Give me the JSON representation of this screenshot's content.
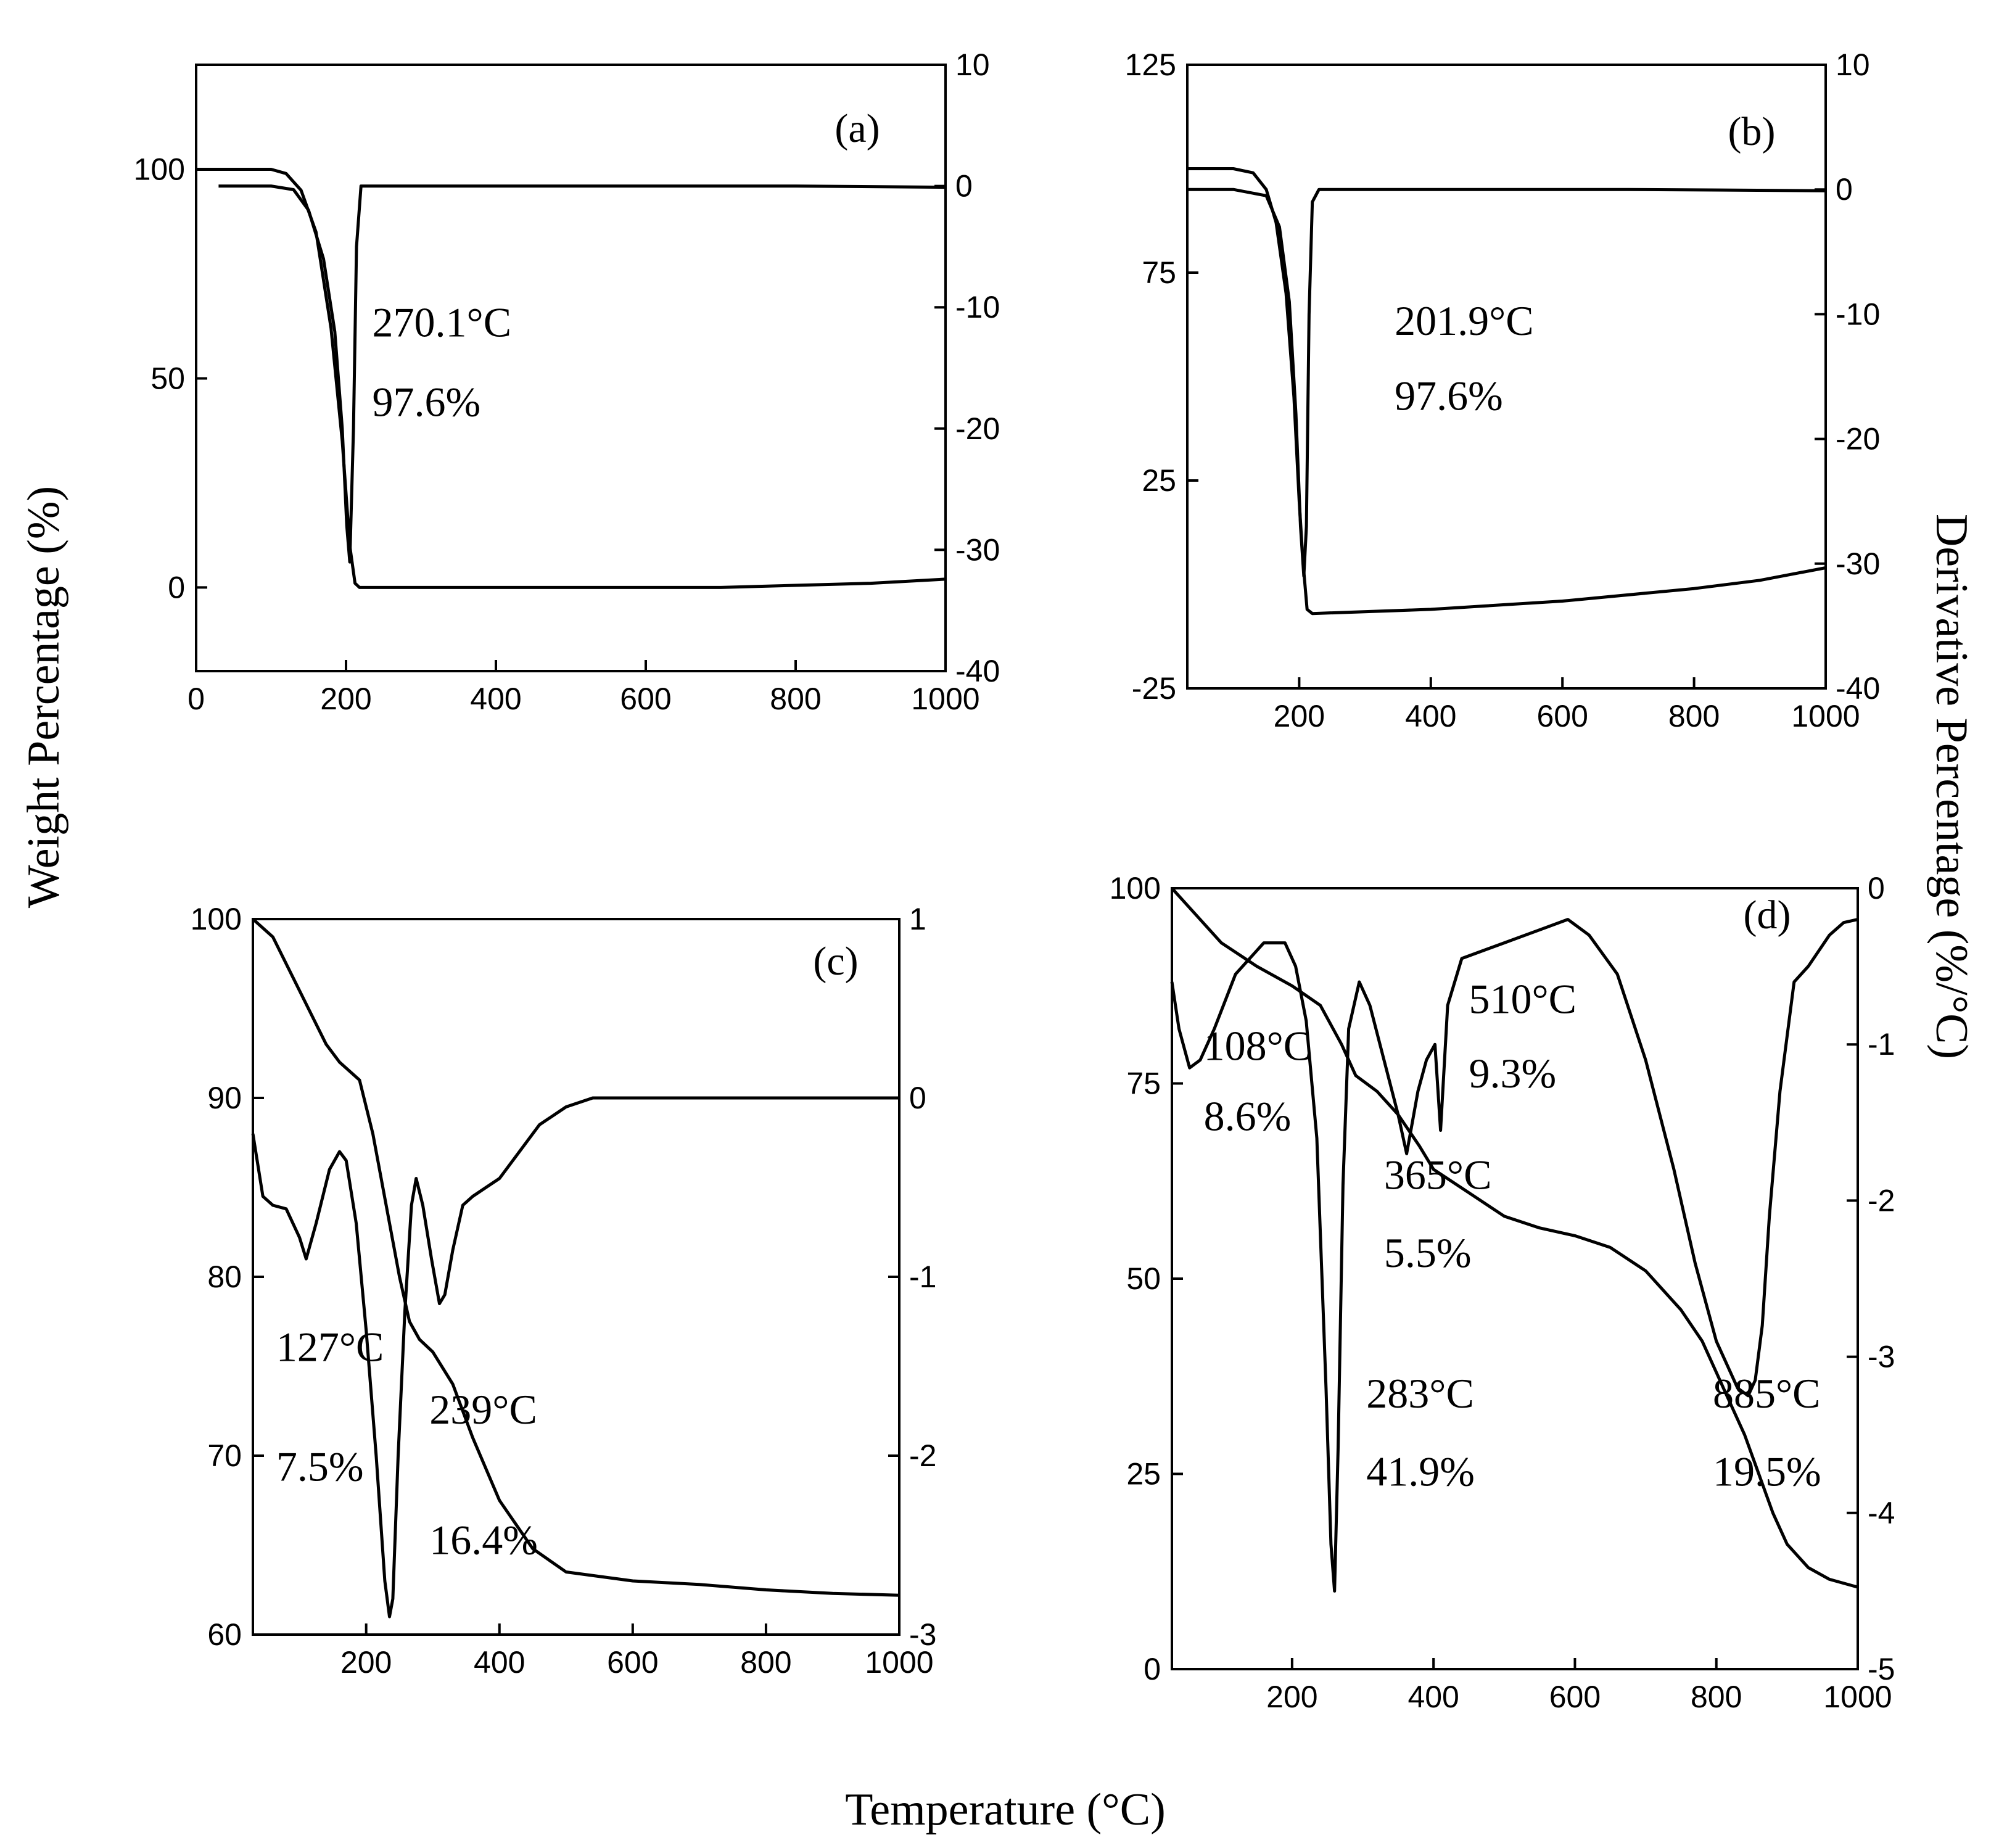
{
  "figure": {
    "ylabel_left": "Weight Percentage (%)",
    "ylabel_right": "Derivative Percentage (%/°C)",
    "xlabel": "Temperature (°C)"
  },
  "chart_data": [
    {
      "panel": "(a)",
      "type": "line",
      "xlim": [
        0,
        1000
      ],
      "ylim_left": [
        -20,
        125
      ],
      "ylim_right": [
        -40,
        10
      ],
      "xticks": [
        "0",
        "200",
        "400",
        "600",
        "800",
        "1000"
      ],
      "yticks_left": [
        "0",
        "50",
        "100"
      ],
      "yticks_right": [
        "10",
        "0",
        "-10",
        "-20",
        "-30",
        "-40"
      ],
      "annotations": [
        {
          "text": "270.1°C",
          "x": 235,
          "y": 60
        },
        {
          "text": "97.6%",
          "x": 235,
          "y": 41
        }
      ],
      "series": [
        {
          "name": "weight",
          "axis": "left",
          "x": [
            0,
            60,
            100,
            120,
            140,
            160,
            180,
            195,
            205,
            212,
            218,
            300,
            500,
            700,
            900,
            1000
          ],
          "y": [
            100,
            100,
            100,
            99,
            95,
            85,
            62,
            35,
            10,
            1,
            0,
            0,
            0,
            0,
            1,
            2
          ]
        },
        {
          "name": "derivative",
          "axis": "right",
          "x": [
            30,
            100,
            130,
            150,
            170,
            185,
            195,
            201,
            205,
            210,
            214,
            220,
            400,
            600,
            800,
            1000
          ],
          "y": [
            0,
            0,
            -0.3,
            -2,
            -6,
            -12,
            -20,
            -28,
            -31,
            -20,
            -5,
            0,
            0,
            0,
            0,
            -0.1
          ]
        }
      ]
    },
    {
      "panel": "(b)",
      "type": "line",
      "xlim": [
        30,
        1000
      ],
      "ylim_left": [
        -25,
        125
      ],
      "ylim_right": [
        -40,
        10
      ],
      "xticks": [
        "200",
        "400",
        "600",
        "800",
        "1000"
      ],
      "yticks_left": [
        "125",
        "75",
        "25",
        "-25"
      ],
      "yticks_right": [
        "10",
        "0",
        "-10",
        "-20",
        "-30",
        "-40"
      ],
      "annotations": [
        {
          "text": "201.9°C",
          "x": 345,
          "y": 60
        },
        {
          "text": "97.6%",
          "x": 345,
          "y": 42
        }
      ],
      "series": [
        {
          "name": "weight",
          "axis": "left",
          "x": [
            30,
            100,
            130,
            150,
            165,
            180,
            192,
            200,
            206,
            212,
            220,
            400,
            600,
            800,
            900,
            1000
          ],
          "y": [
            100,
            100,
            99,
            95,
            87,
            70,
            45,
            20,
            5,
            -6,
            -7,
            -6,
            -4,
            -1,
            1,
            4
          ]
        },
        {
          "name": "derivative",
          "axis": "right",
          "x": [
            30,
            100,
            150,
            170,
            185,
            195,
            202,
            207,
            211,
            215,
            220,
            230,
            400,
            700,
            1000
          ],
          "y": [
            0,
            0,
            -0.5,
            -3,
            -9,
            -18,
            -27,
            -31,
            -27,
            -10,
            -1,
            0,
            0,
            0,
            -0.1
          ]
        }
      ]
    },
    {
      "panel": "(c)",
      "type": "line",
      "xlim": [
        30,
        1000
      ],
      "ylim_left": [
        60,
        100
      ],
      "ylim_right": [
        -3,
        1
      ],
      "xticks": [
        "200",
        "400",
        "600",
        "800",
        "1000"
      ],
      "yticks_left": [
        "60",
        "70",
        "80",
        "90",
        "100"
      ],
      "yticks_right": [
        "1",
        "0",
        "-1",
        "-2",
        "-3"
      ],
      "annotations": [
        {
          "text": "127°C",
          "x": 65,
          "y": 75.3
        },
        {
          "text": "7.5%",
          "x": 65,
          "y": 68.6
        },
        {
          "text": "239°C",
          "x": 295,
          "y": 71.8
        },
        {
          "text": "16.4%",
          "x": 295,
          "y": 64.5
        }
      ],
      "series": [
        {
          "name": "weight",
          "axis": "left",
          "x": [
            30,
            60,
            100,
            140,
            160,
            190,
            210,
            230,
            250,
            265,
            280,
            300,
            330,
            360,
            400,
            450,
            500,
            600,
            700,
            800,
            900,
            1000
          ],
          "y": [
            100,
            99,
            96,
            93,
            92,
            91,
            88,
            84,
            80,
            77.5,
            76.5,
            75.8,
            74,
            71,
            67.5,
            64.8,
            63.5,
            63,
            62.8,
            62.5,
            62.3,
            62.2
          ]
        },
        {
          "name": "derivative",
          "axis": "right",
          "x": [
            30,
            45,
            60,
            80,
            100,
            110,
            125,
            145,
            160,
            170,
            185,
            200,
            215,
            228,
            235,
            240,
            248,
            258,
            268,
            275,
            285,
            298,
            310,
            318,
            330,
            345,
            360,
            380,
            400,
            430,
            460,
            500,
            540,
            600,
            700,
            800,
            900,
            1000
          ],
          "y": [
            -0.2,
            -0.55,
            -0.6,
            -0.62,
            -0.78,
            -0.9,
            -0.7,
            -0.4,
            -0.3,
            -0.35,
            -0.7,
            -1.3,
            -2.0,
            -2.7,
            -2.9,
            -2.8,
            -2.0,
            -1.2,
            -0.6,
            -0.45,
            -0.6,
            -0.9,
            -1.15,
            -1.1,
            -0.85,
            -0.6,
            -0.55,
            -0.5,
            -0.45,
            -0.3,
            -0.15,
            -0.05,
            0,
            0,
            0,
            0,
            0,
            0
          ]
        }
      ]
    },
    {
      "panel": "(d)",
      "type": "line",
      "xlim": [
        30,
        1000
      ],
      "ylim_left": [
        0,
        100
      ],
      "ylim_right": [
        -5,
        0
      ],
      "xticks": [
        "200",
        "400",
        "600",
        "800",
        "1000"
      ],
      "yticks_left": [
        "0",
        "25",
        "50",
        "75",
        "100"
      ],
      "yticks_right": [
        "0",
        "-1",
        "-2",
        "-3",
        "-4",
        "-5"
      ],
      "annotations": [
        {
          "text": "108°C",
          "x": 75,
          "y": 78
        },
        {
          "text": "8.6%",
          "x": 75,
          "y": 69
        },
        {
          "text": "510°C",
          "x": 450,
          "y": 84
        },
        {
          "text": "9.3%",
          "x": 450,
          "y": 74.5
        },
        {
          "text": "365°C",
          "x": 330,
          "y": 61.5
        },
        {
          "text": "5.5%",
          "x": 330,
          "y": 51.5
        },
        {
          "text": "283°C",
          "x": 305,
          "y": 33.5
        },
        {
          "text": "41.9%",
          "x": 305,
          "y": 23.5
        },
        {
          "text": "885°C",
          "x": 795,
          "y": 33.5
        },
        {
          "text": "19.5%",
          "x": 795,
          "y": 23.5
        }
      ],
      "series": [
        {
          "name": "weight",
          "axis": "left",
          "x": [
            30,
            60,
            100,
            150,
            200,
            240,
            270,
            290,
            320,
            350,
            380,
            400,
            450,
            500,
            550,
            600,
            650,
            700,
            750,
            780,
            800,
            820,
            840,
            860,
            880,
            900,
            930,
            960,
            1000
          ],
          "y": [
            100,
            97,
            93,
            90,
            87.5,
            85,
            80,
            76,
            74,
            71,
            67,
            64,
            61,
            58,
            56.5,
            55.5,
            54,
            51,
            46,
            42,
            38,
            34,
            30,
            25,
            20,
            16,
            13,
            11.5,
            10.5
          ]
        },
        {
          "name": "derivative",
          "axis": "right",
          "x": [
            30,
            40,
            55,
            70,
            90,
            120,
            160,
            190,
            205,
            220,
            235,
            248,
            255,
            260,
            265,
            272,
            280,
            295,
            310,
            330,
            350,
            362,
            370,
            378,
            390,
            402,
            410,
            420,
            440,
            500,
            560,
            590,
            620,
            660,
            700,
            740,
            770,
            800,
            830,
            845,
            855,
            865,
            875,
            890,
            910,
            930,
            960,
            980,
            1000
          ],
          "y": [
            -0.6,
            -0.9,
            -1.15,
            -1.1,
            -0.9,
            -0.55,
            -0.35,
            -0.35,
            -0.5,
            -0.85,
            -1.6,
            -3.2,
            -4.2,
            -4.5,
            -3.6,
            -1.9,
            -0.9,
            -0.6,
            -0.75,
            -1.1,
            -1.45,
            -1.7,
            -1.5,
            -1.3,
            -1.1,
            -1.0,
            -1.55,
            -0.75,
            -0.45,
            -0.35,
            -0.25,
            -0.2,
            -0.3,
            -0.55,
            -1.1,
            -1.8,
            -2.4,
            -2.9,
            -3.2,
            -3.25,
            -3.15,
            -2.8,
            -2.1,
            -1.3,
            -0.6,
            -0.5,
            -0.3,
            -0.22,
            -0.2
          ]
        }
      ]
    }
  ]
}
